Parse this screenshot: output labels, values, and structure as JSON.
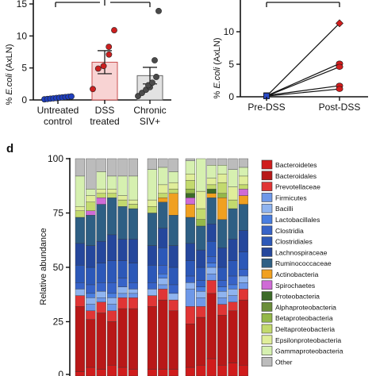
{
  "panel_top_left": {
    "ylabel_prefix": "% ",
    "ylabel_italic": "E.coli",
    "ylabel_suffix": " (AxLN)",
    "yticks": [
      "0",
      "5",
      "10",
      "15"
    ]
  },
  "panel_top_right": {
    "ylabel_prefix": "% ",
    "ylabel_italic": "E.coli",
    "ylabel_suffix": " (AxLN)",
    "yticks": [
      "0",
      "5",
      "10"
    ]
  },
  "panel_d": {
    "letter": "d",
    "ylabel": "Relative abundance",
    "yticks": [
      "0",
      "25",
      "50",
      "75",
      "100"
    ]
  },
  "chart_data": [
    {
      "type": "scatter",
      "ylim": [
        0,
        15
      ],
      "categories": [
        "Untreated control",
        "DSS treated",
        "Chronic SIV+"
      ],
      "category_labels": [
        [
          "Untreated",
          "control"
        ],
        [
          "DSS",
          "treated"
        ],
        [
          "Chronic",
          "SIV+"
        ]
      ],
      "bar_means": [
        0.3,
        5.9,
        3.8
      ],
      "bar_errors": [
        0.1,
        1.8,
        1.3
      ],
      "bar_fills": [
        "#3a55c8",
        "#f8d3d3",
        "#e2e2e2"
      ],
      "point_colors": [
        "#1f3fbf",
        "#cc1f1f",
        "#4a4a4a"
      ],
      "points": [
        [
          0.1,
          0.15,
          0.2,
          0.25,
          0.3,
          0.35,
          0.4,
          0.45,
          0.5,
          0.55
        ],
        [
          1.7,
          4.9,
          5.3,
          7.1,
          8.3,
          10.9
        ],
        [
          0.6,
          1.1,
          1.6,
          2.0,
          2.3,
          2.7,
          3.6,
          6.2,
          13.9
        ]
      ],
      "significance_bars": [
        [
          "Untreated control",
          "DSS treated"
        ],
        [
          "DSS treated",
          "Chronic SIV+"
        ]
      ]
    },
    {
      "type": "line",
      "ylim": [
        0,
        12
      ],
      "categories": [
        "Pre-DSS",
        "Post-DSS"
      ],
      "series": [
        {
          "values": [
            0.1,
            11.3
          ]
        },
        {
          "values": [
            0.15,
            5.1
          ]
        },
        {
          "values": [
            0.1,
            4.6
          ]
        },
        {
          "values": [
            0.2,
            1.7
          ]
        },
        {
          "values": [
            0.1,
            1.2
          ]
        }
      ],
      "significance_bars": [
        [
          "Pre-DSS",
          "Post-DSS"
        ]
      ]
    },
    {
      "type": "bar",
      "stacked": true,
      "ylim": [
        0,
        100
      ],
      "ylabel": "Relative abundance",
      "legend": [
        {
          "name": "Bacteroidetes",
          "color": "#d01c1c"
        },
        {
          "name": "Bacteroidales",
          "color": "#b81818"
        },
        {
          "name": "Prevotellaceae",
          "color": "#e03535"
        },
        {
          "name": "Firmicutes",
          "color": "#6e98e8"
        },
        {
          "name": "Bacilli",
          "color": "#8fb4f0"
        },
        {
          "name": "Lactobacillales",
          "color": "#4a7ee0"
        },
        {
          "name": "Clostridia",
          "color": "#3763c8"
        },
        {
          "name": "Clostridiales",
          "color": "#2c58b8"
        },
        {
          "name": "Lachnospiraceae",
          "color": "#25479c"
        },
        {
          "name": "Ruminococcaceae",
          "color": "#2e5f84"
        },
        {
          "name": "Actinobacteria",
          "color": "#f0a020"
        },
        {
          "name": "Spirochaetes",
          "color": "#cf6bd6"
        },
        {
          "name": "Proteobacteria",
          "color": "#3c6b28"
        },
        {
          "name": "Alphaproteobacteria",
          "color": "#6b8e3a"
        },
        {
          "name": "Betaproteobacteria",
          "color": "#94b84a"
        },
        {
          "name": "Deltaproteobacteria",
          "color": "#c3da6e"
        },
        {
          "name": "Epsilonproteobacteria",
          "color": "#e0ee9a"
        },
        {
          "name": "Gammaproteobacteria",
          "color": "#d6f0b0"
        },
        {
          "name": "Other",
          "color": "#bcbcbc"
        }
      ],
      "groups": [
        {
          "samples": [
            [
              2,
              30,
              5,
              0,
              3,
              0,
              3,
              8,
              10,
              12,
              0,
              0,
              0,
              0,
              0,
              3,
              2,
              14,
              8
            ],
            [
              4,
              22,
              4,
              3,
              3,
              2,
              4,
              8,
              10,
              14,
              0,
              2,
              0,
              0,
              0,
              4,
              3,
              3,
              14
            ],
            [
              3,
              26,
              5,
              2,
              3,
              0,
              4,
              9,
              10,
              17,
              0,
              3,
              0,
              0,
              0,
              2,
              2,
              8,
              6
            ],
            [
              5,
              20,
              5,
              3,
              3,
              2,
              5,
              10,
              12,
              17,
              0,
              0,
              0,
              0,
              0,
              2,
              2,
              6,
              8
            ],
            [
              4,
              27,
              5,
              2,
              3,
              0,
              4,
              8,
              10,
              15,
              0,
              0,
              0,
              0,
              0,
              3,
              2,
              9,
              8
            ],
            [
              3,
              28,
              5,
              2,
              2,
              0,
              3,
              9,
              11,
              14,
              0,
              0,
              0,
              0,
              0,
              2,
              2,
              11,
              8
            ]
          ]
        },
        {
          "samples": [
            [
              3,
              29,
              5,
              0,
              3,
              0,
              3,
              8,
              9,
              15,
              0,
              0,
              0,
              0,
              0,
              3,
              3,
              14,
              5
            ],
            [
              3,
              32,
              5,
              2,
              3,
              2,
              4,
              8,
              9,
              12,
              2,
              0,
              0,
              0,
              0,
              2,
              4,
              8,
              4
            ],
            [
              3,
              27,
              5,
              0,
              3,
              0,
              4,
              8,
              10,
              14,
              10,
              0,
              0,
              0,
              0,
              2,
              3,
              5,
              6
            ]
          ]
        },
        {
          "samples": [
            [
              4,
              20,
              8,
              8,
              3,
              0,
              3,
              7,
              8,
              12,
              6,
              3,
              2,
              0,
              2,
              4,
              3,
              6,
              1
            ],
            [
              5,
              22,
              5,
              4,
              3,
              2,
              3,
              6,
              8,
              11,
              0,
              0,
              0,
              0,
              3,
              5,
              8,
              15,
              0
            ],
            [
              8,
              30,
              6,
              3,
              3,
              2,
              3,
              7,
              8,
              12,
              2,
              0,
              2,
              0,
              0,
              2,
              3,
              6,
              3
            ],
            [
              5,
              23,
              5,
              3,
              3,
              2,
              3,
              6,
              9,
              13,
              10,
              0,
              0,
              0,
              2,
              5,
              4,
              4,
              3
            ],
            [
              6,
              24,
              4,
              3,
              3,
              2,
              4,
              7,
              10,
              14,
              0,
              0,
              0,
              0,
              0,
              4,
              6,
              8,
              5
            ],
            [
              5,
              30,
              5,
              3,
              3,
              0,
              3,
              8,
              10,
              12,
              4,
              3,
              0,
              0,
              0,
              2,
              4,
              4,
              4
            ]
          ]
        }
      ]
    }
  ]
}
